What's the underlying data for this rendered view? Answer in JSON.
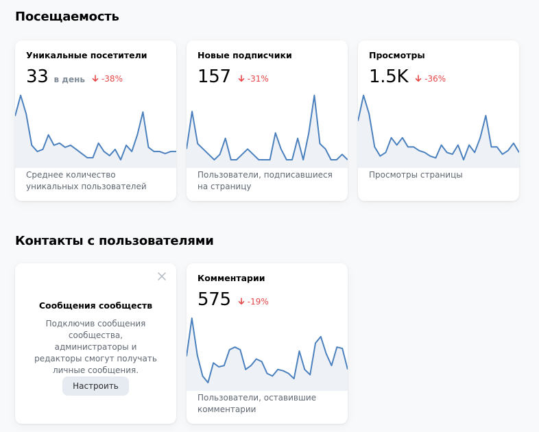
{
  "sections": {
    "attendance": "Посещаемость",
    "contacts": "Контакты с пользователями"
  },
  "cards": {
    "unique": {
      "title": "Уникальные посетители",
      "value": "33",
      "unit": "в день",
      "delta": "-38%",
      "description": "Среднее количество уникальных пользователей",
      "series": [
        18,
        28,
        19,
        4,
        1,
        2,
        9,
        4,
        5,
        3,
        4,
        2,
        0,
        -2,
        -2,
        5,
        1,
        -1,
        2,
        -3,
        4,
        1,
        9,
        20,
        3,
        1,
        1,
        0,
        1,
        1
      ]
    },
    "subscribers": {
      "title": "Новые подписчики",
      "value": "157",
      "unit": "",
      "delta": "-31%",
      "description": "Пользователи, подписавшиеся на страницу",
      "series": [
        2,
        9,
        3,
        2,
        1,
        0,
        1,
        4,
        0,
        0,
        1,
        2,
        1,
        0,
        0,
        0,
        5,
        2,
        0,
        0,
        4,
        0,
        5,
        12,
        3,
        2,
        0,
        0,
        1,
        0
      ]
    },
    "views": {
      "title": "Просмотры",
      "value": "1.5K",
      "unit": "",
      "delta": "-36%",
      "description": "Просмотры страницы",
      "series": [
        21,
        35,
        25,
        7,
        2,
        4,
        12,
        8,
        12,
        7,
        7,
        5,
        4,
        2,
        1,
        8,
        4,
        3,
        8,
        0,
        8,
        4,
        12,
        24,
        7,
        7,
        3,
        5,
        9,
        4
      ]
    },
    "messages": {
      "title": "Сообщения сообществ",
      "text": "Подключив сообщения сообщества, администраторы и редакторы смогут получать личные сообщения.",
      "button": "Настроить"
    },
    "comments": {
      "title": "Комментарии",
      "value": "575",
      "unit": "",
      "delta": "-19%",
      "description": "Пользователи, оставившие комментарии",
      "series": [
        17,
        46,
        18,
        2,
        -3,
        12,
        9,
        10,
        22,
        24,
        22,
        7,
        10,
        15,
        13,
        4,
        2,
        7,
        6,
        4,
        0,
        21,
        7,
        3,
        27,
        32,
        19,
        10,
        24,
        23,
        7
      ]
    }
  },
  "colors": {
    "line": "#4a80bd",
    "fill": "#eef1f6",
    "negative": "#e64646"
  }
}
